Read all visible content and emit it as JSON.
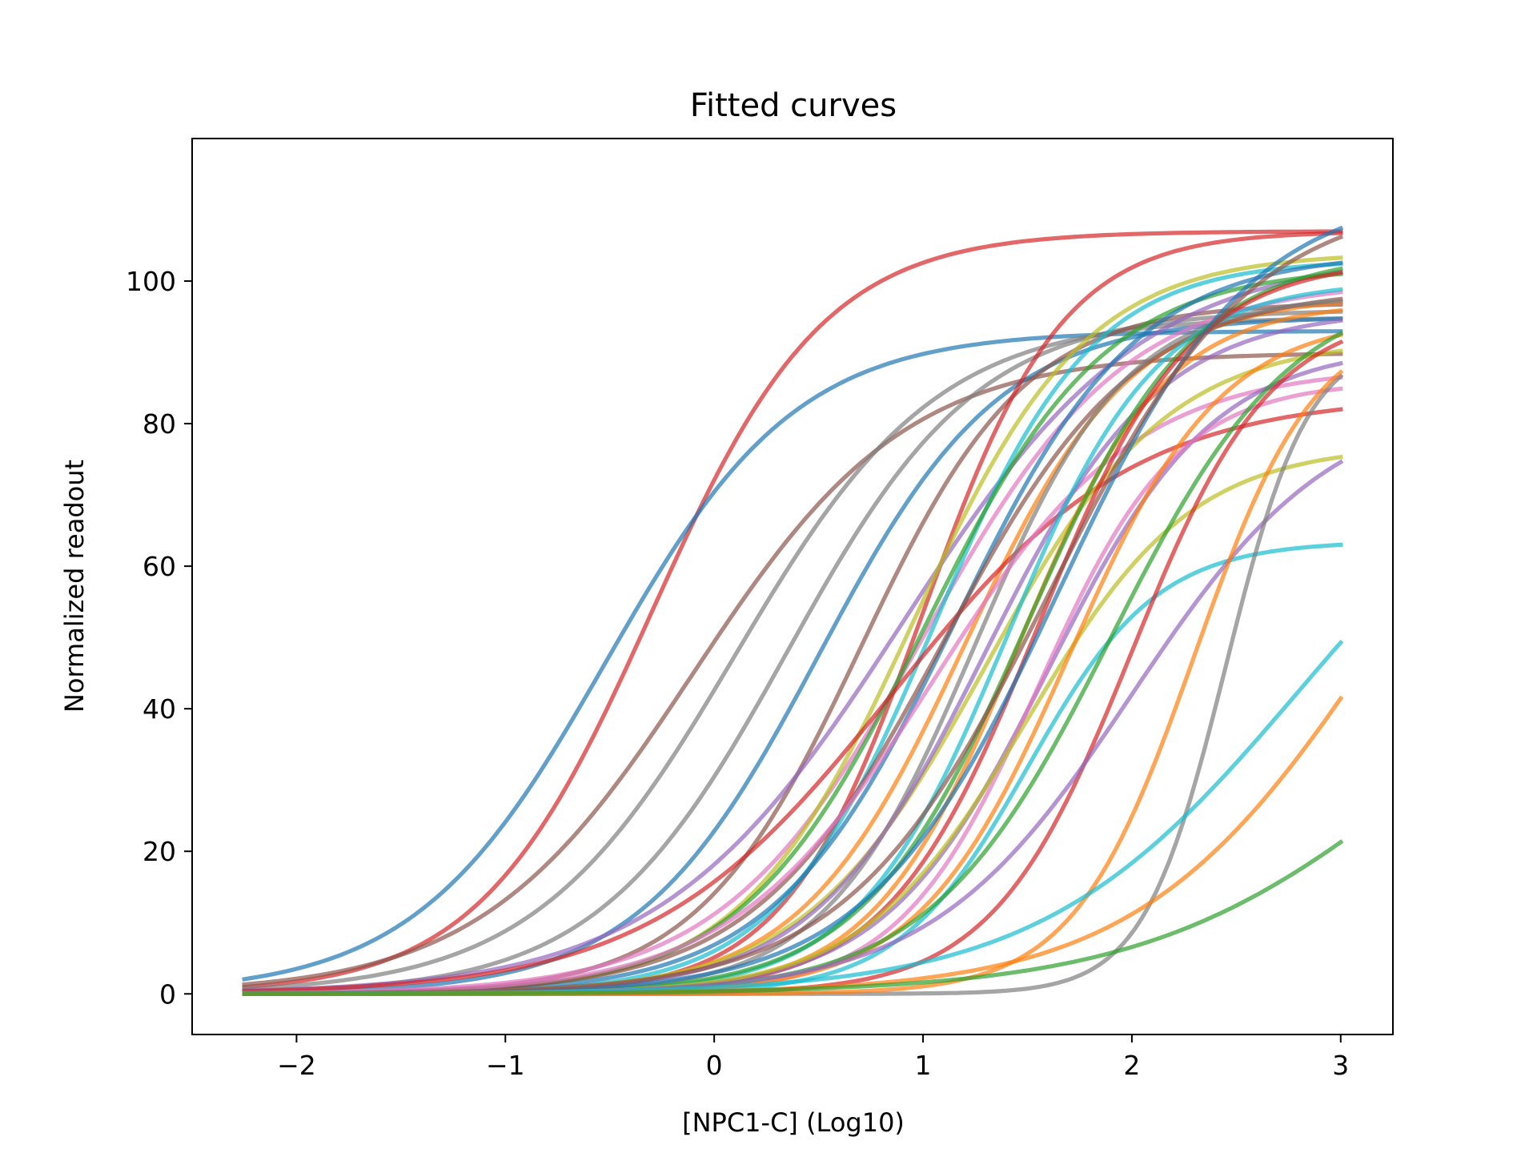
{
  "chart_data": {
    "type": "line",
    "title": "Fitted curves",
    "xlabel": "[NPC1-C] (Log10)",
    "ylabel": "Normalized readout",
    "xlim": [
      -2.5,
      3.25
    ],
    "ylim": [
      -5.7,
      120
    ],
    "xticks": [
      -2,
      -1,
      0,
      1,
      2,
      3
    ],
    "xtick_labels": [
      "−2",
      "−1",
      "0",
      "1",
      "2",
      "3"
    ],
    "yticks": [
      0,
      20,
      40,
      60,
      80,
      100
    ],
    "ytick_labels": [
      "0",
      "20",
      "40",
      "60",
      "80",
      "100"
    ],
    "x_range": [
      -2.25,
      3.0
    ],
    "grid": false,
    "legend": false,
    "curve_model": "4-parameter logistic in log10 concentration (bottom, top, log EC50, Hill slope)",
    "series": [
      {
        "color": "#d62728",
        "bottom": 0,
        "top": 107,
        "logec50": -0.3,
        "hill": 1.05
      },
      {
        "color": "#1f77b4",
        "bottom": 0,
        "top": 93,
        "logec50": -0.52,
        "hill": 0.95
      },
      {
        "color": "#8c564b",
        "bottom": 0,
        "top": 90,
        "logec50": -0.1,
        "hill": 0.85
      },
      {
        "color": "#7f7f7f",
        "bottom": 0,
        "top": 95,
        "logec50": 0.1,
        "hill": 0.9
      },
      {
        "color": "#7f7f7f",
        "bottom": 0,
        "top": 96,
        "logec50": 0.35,
        "hill": 0.95
      },
      {
        "color": "#1f77b4",
        "bottom": 0,
        "top": 95,
        "logec50": 0.5,
        "hill": 1.0
      },
      {
        "color": "#8c564b",
        "bottom": 0,
        "top": 97,
        "logec50": 0.7,
        "hill": 1.1
      },
      {
        "color": "#d62728",
        "bottom": 0,
        "top": 107,
        "logec50": 1.0,
        "hill": 1.3
      },
      {
        "color": "#9467bd",
        "bottom": 0,
        "top": 104,
        "logec50": 0.9,
        "hill": 0.75
      },
      {
        "color": "#e377c2",
        "bottom": 0,
        "top": 100,
        "logec50": 1.0,
        "hill": 0.9
      },
      {
        "color": "#bcbd22",
        "bottom": 0,
        "top": 104,
        "logec50": 0.95,
        "hill": 1.05
      },
      {
        "color": "#17becf",
        "bottom": 0,
        "top": 103,
        "logec50": 1.05,
        "hill": 1.15
      },
      {
        "color": "#2ca02c",
        "bottom": 0,
        "top": 102,
        "logec50": 1.0,
        "hill": 1.0
      },
      {
        "color": "#ff7f0e",
        "bottom": 0,
        "top": 98,
        "logec50": 1.2,
        "hill": 1.1
      },
      {
        "color": "#1f77b4",
        "bottom": 0,
        "top": 104,
        "logec50": 1.15,
        "hill": 1.0
      },
      {
        "color": "#d62728",
        "bottom": 0,
        "top": 84,
        "logec50": 0.85,
        "hill": 0.75
      },
      {
        "color": "#8c564b",
        "bottom": 0,
        "top": 99,
        "logec50": 1.1,
        "hill": 0.95
      },
      {
        "color": "#7f7f7f",
        "bottom": 0,
        "top": 98,
        "logec50": 1.25,
        "hill": 1.2
      },
      {
        "color": "#e377c2",
        "bottom": 0,
        "top": 88,
        "logec50": 1.05,
        "hill": 0.9
      },
      {
        "color": "#bcbd22",
        "bottom": 0,
        "top": 92,
        "logec50": 1.3,
        "hill": 1.0
      },
      {
        "color": "#9467bd",
        "bottom": 0,
        "top": 96,
        "logec50": 1.3,
        "hill": 1.05
      },
      {
        "color": "#17becf",
        "bottom": 0,
        "top": 100,
        "logec50": 1.4,
        "hill": 1.2
      },
      {
        "color": "#ff7f0e",
        "bottom": 0,
        "top": 97,
        "logec50": 1.45,
        "hill": 1.25
      },
      {
        "color": "#2ca02c",
        "bottom": 0,
        "top": 104,
        "logec50": 1.5,
        "hill": 1.1
      },
      {
        "color": "#d62728",
        "bottom": 0,
        "top": 103,
        "logec50": 1.55,
        "hill": 1.2
      },
      {
        "color": "#1f77b4",
        "bottom": 0,
        "top": 113,
        "logec50": 1.65,
        "hill": 0.95
      },
      {
        "color": "#8c564b",
        "bottom": 0,
        "top": 112,
        "logec50": 1.6,
        "hill": 0.9
      },
      {
        "color": "#9467bd",
        "bottom": 0,
        "top": 91,
        "logec50": 1.6,
        "hill": 1.1
      },
      {
        "color": "#e377c2",
        "bottom": 0,
        "top": 86,
        "logec50": 1.55,
        "hill": 1.3
      },
      {
        "color": "#bcbd22",
        "bottom": 0,
        "top": 77,
        "logec50": 1.5,
        "hill": 1.1
      },
      {
        "color": "#17becf",
        "bottom": 0,
        "top": 63.5,
        "logec50": 1.5,
        "hill": 1.4
      },
      {
        "color": "#ff7f0e",
        "bottom": 0,
        "top": 95,
        "logec50": 1.7,
        "hill": 1.2
      },
      {
        "color": "#2ca02c",
        "bottom": 0,
        "top": 100,
        "logec50": 1.9,
        "hill": 1.0
      },
      {
        "color": "#d62728",
        "bottom": 0,
        "top": 96,
        "logec50": 2.0,
        "hill": 1.3
      },
      {
        "color": "#9467bd",
        "bottom": 0,
        "top": 84,
        "logec50": 2.0,
        "hill": 0.9
      },
      {
        "color": "#7f7f7f",
        "bottom": 0,
        "top": 92,
        "logec50": 2.45,
        "hill": 2.2
      },
      {
        "color": "#ff7f0e",
        "bottom": 0,
        "top": 95,
        "logec50": 2.3,
        "hill": 1.5
      },
      {
        "color": "#17becf",
        "bottom": 0,
        "top": 85,
        "logec50": 2.8,
        "hill": 0.7
      },
      {
        "color": "#ff7f0e",
        "bottom": 0,
        "top": 100,
        "logec50": 3.2,
        "hill": 0.75
      },
      {
        "color": "#2ca02c",
        "bottom": 0,
        "top": 60,
        "logec50": 3.4,
        "hill": 0.65
      }
    ]
  }
}
